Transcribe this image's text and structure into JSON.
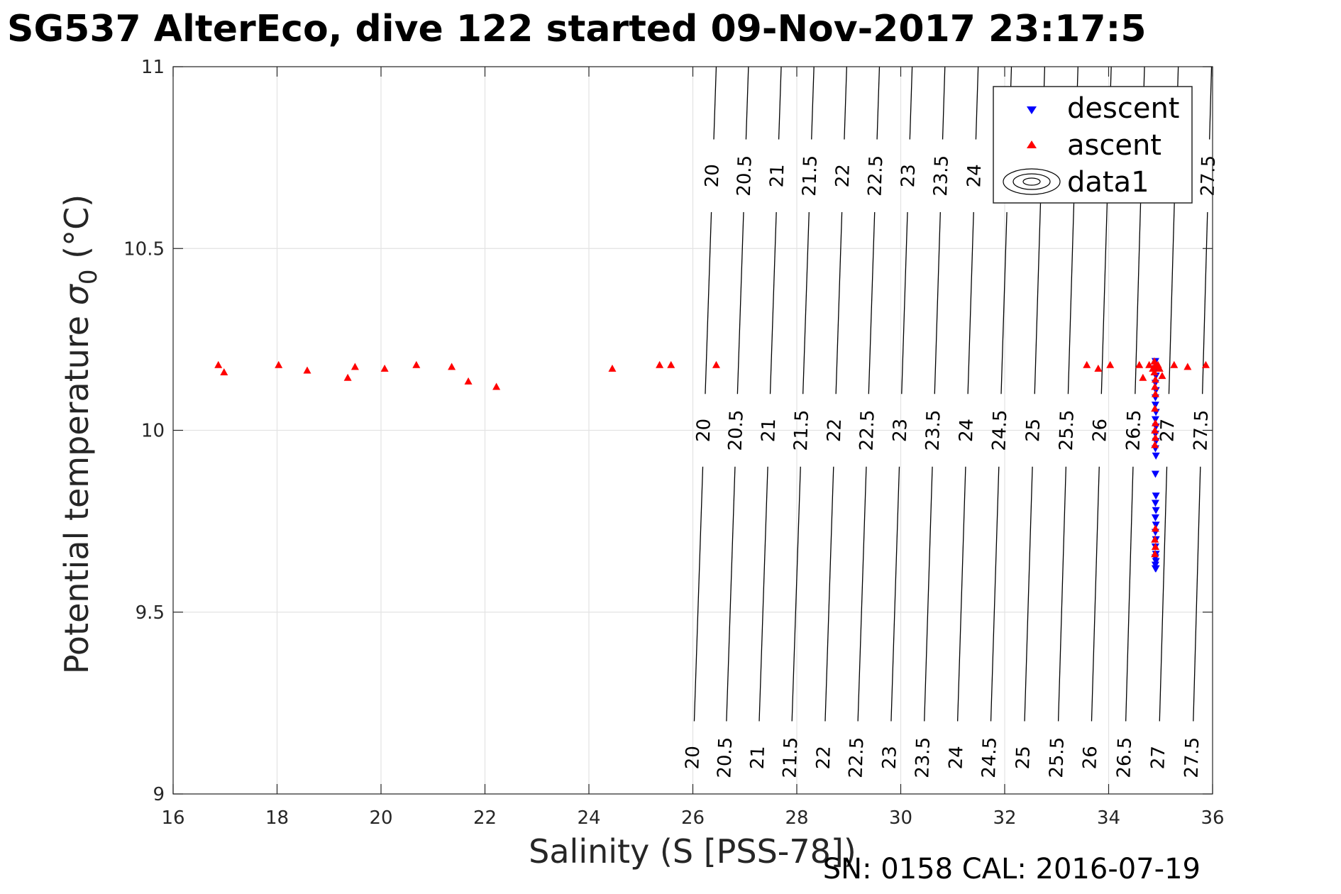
{
  "chart_data": {
    "type": "scatter",
    "title": "SG537 AlterEco, dive 122 started 09-Nov-2017 23:17:5",
    "xlabel": "Salinity (S [PSS-78])",
    "ylabel_prefix": "Potential temperature ",
    "ylabel_sym": "σ",
    "ylabel_sub": "0",
    "ylabel_suffix": " (°C)",
    "footer": "SN: 0158  CAL: 2016-07-19",
    "xlim": [
      16,
      36
    ],
    "ylim": [
      9,
      11
    ],
    "xticks": [
      16,
      18,
      20,
      22,
      24,
      26,
      28,
      30,
      32,
      34,
      36
    ],
    "yticks": [
      9,
      9.5,
      10,
      10.5,
      11
    ],
    "grid": true,
    "legend_position": "top-right",
    "legend": [
      "descent",
      "ascent",
      "data1"
    ],
    "contours": {
      "levels": [
        "20",
        "20.5",
        "21",
        "21.5",
        "22",
        "22.5",
        "23",
        "23.5",
        "24",
        "24.5",
        "25",
        "25.5",
        "26",
        "26.5",
        "27",
        "27.5"
      ],
      "x_at_t9": [
        25.98,
        26.6,
        27.23,
        27.86,
        28.5,
        29.13,
        29.77,
        30.41,
        31.05,
        31.69,
        32.34,
        32.99,
        33.63,
        34.29,
        34.94,
        35.59
      ],
      "x_at_t11": [
        26.45,
        27.07,
        27.7,
        28.33,
        28.96,
        29.59,
        30.22,
        30.85,
        31.49,
        32.13,
        32.77,
        33.41,
        34.05,
        34.69,
        35.34,
        35.98
      ],
      "label_rows_t": [
        9.1,
        10.0,
        10.7
      ]
    },
    "series": [
      {
        "name": "descent",
        "color": "#0000ff",
        "marker": "triangle-down",
        "points": [
          [
            34.9,
            10.19
          ],
          [
            34.9,
            10.17
          ],
          [
            34.91,
            10.15
          ],
          [
            34.9,
            10.13
          ],
          [
            34.91,
            10.11
          ],
          [
            34.9,
            10.09
          ],
          [
            34.9,
            10.07
          ],
          [
            34.91,
            10.05
          ],
          [
            34.9,
            10.03
          ],
          [
            34.91,
            10.01
          ],
          [
            34.9,
            9.99
          ],
          [
            34.91,
            9.97
          ],
          [
            34.9,
            9.95
          ],
          [
            34.91,
            9.93
          ],
          [
            34.9,
            9.88
          ],
          [
            34.91,
            9.82
          ],
          [
            34.9,
            9.8
          ],
          [
            34.91,
            9.78
          ],
          [
            34.9,
            9.76
          ],
          [
            34.91,
            9.74
          ],
          [
            34.9,
            9.72
          ],
          [
            34.91,
            9.7
          ],
          [
            34.9,
            9.68
          ],
          [
            34.91,
            9.66
          ],
          [
            34.9,
            9.65
          ],
          [
            34.91,
            9.64
          ],
          [
            34.9,
            9.63
          ],
          [
            34.91,
            9.62
          ],
          [
            34.9,
            9.62
          ]
        ]
      },
      {
        "name": "ascent",
        "color": "#ff0000",
        "marker": "triangle-up",
        "points": [
          [
            16.87,
            10.18
          ],
          [
            16.98,
            10.16
          ],
          [
            18.03,
            10.18
          ],
          [
            18.58,
            10.165
          ],
          [
            19.36,
            10.145
          ],
          [
            19.5,
            10.175
          ],
          [
            20.07,
            10.17
          ],
          [
            20.68,
            10.18
          ],
          [
            21.36,
            10.175
          ],
          [
            21.68,
            10.135
          ],
          [
            22.22,
            10.12
          ],
          [
            24.45,
            10.17
          ],
          [
            25.36,
            10.18
          ],
          [
            25.58,
            10.18
          ],
          [
            26.45,
            10.18
          ],
          [
            33.58,
            10.18
          ],
          [
            33.8,
            10.17
          ],
          [
            34.03,
            10.18
          ],
          [
            34.59,
            10.18
          ],
          [
            34.66,
            10.145
          ],
          [
            34.78,
            10.18
          ],
          [
            34.85,
            10.17
          ],
          [
            34.88,
            10.19
          ],
          [
            34.9,
            10.18
          ],
          [
            34.92,
            10.175
          ],
          [
            34.95,
            10.18
          ],
          [
            34.98,
            10.17
          ],
          [
            35.03,
            10.15
          ],
          [
            35.26,
            10.18
          ],
          [
            35.52,
            10.175
          ],
          [
            35.87,
            10.18
          ],
          [
            34.88,
            10.16
          ],
          [
            34.9,
            10.14
          ],
          [
            34.89,
            10.12
          ],
          [
            34.9,
            10.1
          ],
          [
            34.89,
            10.06
          ],
          [
            34.9,
            10.02
          ],
          [
            34.89,
            10.0
          ],
          [
            34.9,
            9.98
          ],
          [
            34.89,
            9.96
          ],
          [
            34.9,
            9.73
          ],
          [
            34.89,
            9.7
          ],
          [
            34.9,
            9.68
          ],
          [
            34.89,
            9.66
          ]
        ]
      }
    ]
  }
}
